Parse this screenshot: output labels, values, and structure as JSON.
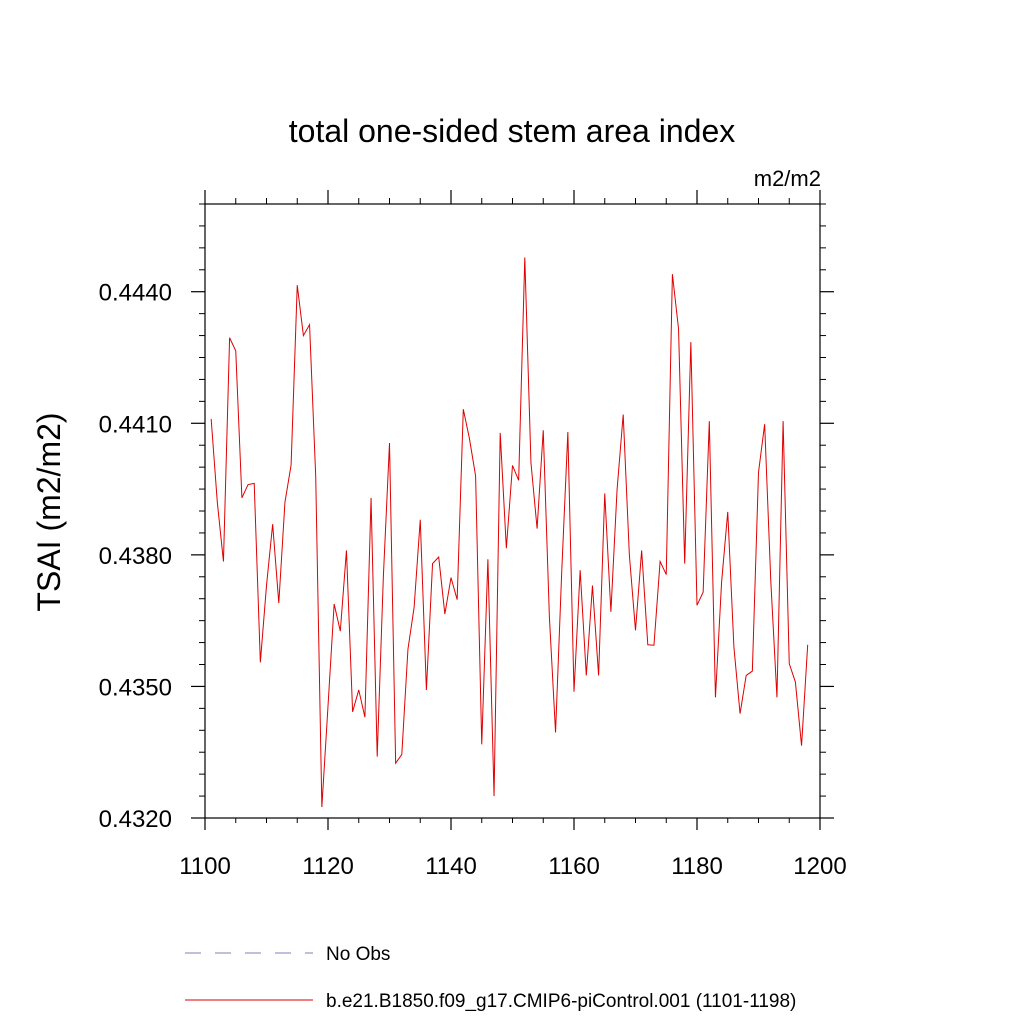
{
  "chart_data": {
    "type": "line",
    "title": "total one-sided stem area index",
    "units": "m2/m2",
    "ylabel": "TSAI  (m2/m2)",
    "xlabel": "",
    "xlim": [
      1100,
      1200
    ],
    "ylim": [
      0.432,
      0.446
    ],
    "xticks": [
      1100,
      1120,
      1140,
      1160,
      1180,
      1200
    ],
    "xtick_labels": [
      "1100",
      "1120",
      "1140",
      "1160",
      "1180",
      "1200"
    ],
    "yticks": [
      0.432,
      0.435,
      0.438,
      0.441,
      0.444
    ],
    "ytick_labels": [
      "0.4320",
      "0.4350",
      "0.4380",
      "0.4410",
      "0.4440"
    ],
    "grid": false,
    "legend": {
      "placement": "bottom",
      "entries": [
        {
          "label": "No Obs",
          "color": "#7f7fbf",
          "style": "dashed"
        },
        {
          "label": "b.e21.B1850.f09_g17.CMIP6-piControl.001 (1101-1198)",
          "color": "#e00000",
          "style": "solid"
        }
      ]
    },
    "series": [
      {
        "name": "b.e21.B1850.f09_g17.CMIP6-piControl.001 (1101-1198)",
        "color": "#e00000",
        "x": [
          1101,
          1102,
          1103,
          1104,
          1105,
          1106,
          1107,
          1108,
          1109,
          1110,
          1111,
          1112,
          1113,
          1114,
          1115,
          1116,
          1117,
          1118,
          1119,
          1120,
          1121,
          1122,
          1123,
          1124,
          1125,
          1126,
          1127,
          1128,
          1129,
          1130,
          1131,
          1132,
          1133,
          1134,
          1135,
          1136,
          1137,
          1138,
          1139,
          1140,
          1141,
          1142,
          1143,
          1144,
          1145,
          1146,
          1147,
          1148,
          1149,
          1150,
          1151,
          1152,
          1153,
          1154,
          1155,
          1156,
          1157,
          1158,
          1159,
          1160,
          1161,
          1162,
          1163,
          1164,
          1165,
          1166,
          1167,
          1168,
          1169,
          1170,
          1171,
          1172,
          1173,
          1174,
          1175,
          1176,
          1177,
          1178,
          1179,
          1180,
          1181,
          1182,
          1183,
          1184,
          1185,
          1186,
          1187,
          1188,
          1189,
          1190,
          1191,
          1192,
          1193,
          1194,
          1195,
          1196,
          1197,
          1198
        ],
        "values": [
          0.4411,
          0.4392,
          0.43785,
          0.44295,
          0.44265,
          0.4393,
          0.4396,
          0.43963,
          0.43555,
          0.4373,
          0.4387,
          0.4369,
          0.4392,
          0.44005,
          0.44415,
          0.443,
          0.44325,
          0.4398,
          0.43225,
          0.43455,
          0.43688,
          0.43626,
          0.4381,
          0.43442,
          0.43492,
          0.4343,
          0.4393,
          0.4334,
          0.4375,
          0.44055,
          0.43325,
          0.43345,
          0.43585,
          0.4368,
          0.4388,
          0.43492,
          0.4378,
          0.43795,
          0.43665,
          0.43748,
          0.43698,
          0.44132,
          0.44065,
          0.4398,
          0.43368,
          0.4379,
          0.4325,
          0.44078,
          0.43815,
          0.44004,
          0.4397,
          0.44478,
          0.4401,
          0.4386,
          0.44084,
          0.43658,
          0.43395,
          0.4376,
          0.4408,
          0.43488,
          0.43765,
          0.43525,
          0.4373,
          0.43525,
          0.4394,
          0.4367,
          0.43948,
          0.4412,
          0.438,
          0.43628,
          0.4381,
          0.43595,
          0.43594,
          0.43785,
          0.43755,
          0.4444,
          0.44315,
          0.4378,
          0.44285,
          0.43685,
          0.43715,
          0.44105,
          0.43475,
          0.43738,
          0.43898,
          0.4359,
          0.43438,
          0.43525,
          0.43535,
          0.43988,
          0.44098,
          0.4374,
          0.43475,
          0.44105,
          0.43552,
          0.4351,
          0.43365,
          0.43595
        ]
      }
    ]
  }
}
